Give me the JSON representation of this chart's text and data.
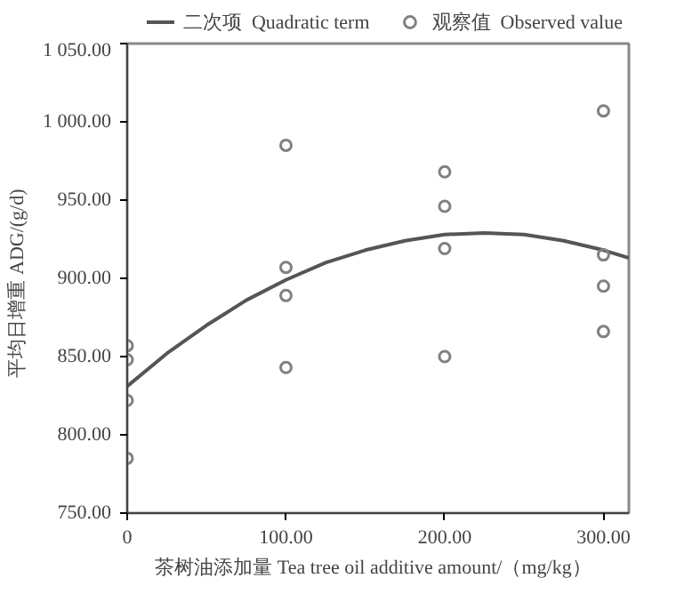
{
  "chart_data": {
    "type": "scatter",
    "xlabel": "茶树油添加量   Tea tree oil additive amount/（mg/kg）",
    "ylabel": "平均日增重   ADG/(g/d)",
    "xlim": [
      0,
      316
    ],
    "ylim": [
      750,
      1050
    ],
    "xticks": [
      0,
      {
        "value": 100,
        "label": "100.00"
      },
      {
        "value": 200,
        "label": "200.00"
      },
      {
        "value": 300,
        "label": "300.00"
      }
    ],
    "yticks": [
      {
        "value": 750,
        "label": "750.00"
      },
      {
        "value": 800,
        "label": "800.00"
      },
      {
        "value": 850,
        "label": "850.00"
      },
      {
        "value": 900,
        "label": "900.00"
      },
      {
        "value": 950,
        "label": "950.00"
      },
      {
        "value": 1000,
        "label": "1 000.00"
      },
      {
        "value": 1050,
        "label": "1 050.00"
      }
    ],
    "grid": false,
    "legend": "top",
    "series": [
      {
        "name": "二次项  Quadratic term",
        "type": "line",
        "color": "#555555",
        "line_style": "solid",
        "x": [
          0,
          25,
          50,
          75,
          100,
          125,
          150,
          175,
          200,
          225,
          250,
          275,
          300,
          316
        ],
        "values": [
          831,
          852,
          870,
          886,
          899,
          910,
          918,
          924,
          928,
          929,
          928,
          924,
          918,
          913
        ]
      },
      {
        "name": "观察值  Observed value",
        "color": "#808080",
        "marker": "circle",
        "x": [
          0,
          0,
          0,
          0,
          100,
          100,
          100,
          100,
          200,
          200,
          200,
          200,
          300,
          300,
          300,
          300
        ],
        "values": [
          857,
          848,
          822,
          785,
          985,
          907,
          889,
          843,
          968,
          946,
          919,
          850,
          1007,
          915,
          895,
          866
        ]
      }
    ]
  }
}
